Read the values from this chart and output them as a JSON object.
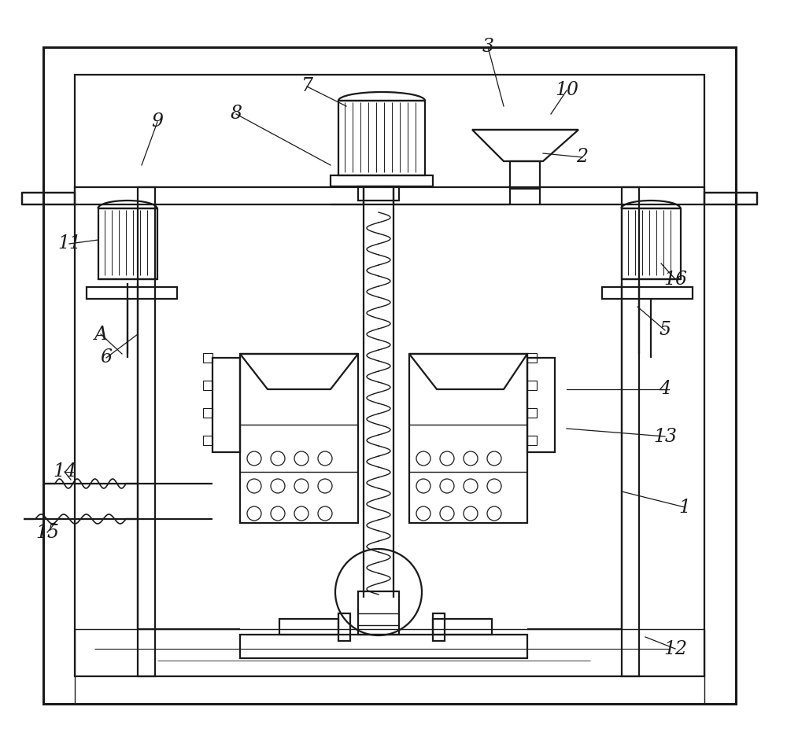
{
  "bg_color": "#ffffff",
  "line_color": "#1a1a1a",
  "lw_main": 1.6,
  "lw_thin": 1.0,
  "lw_thick": 2.2,
  "label_fontsize": 17
}
